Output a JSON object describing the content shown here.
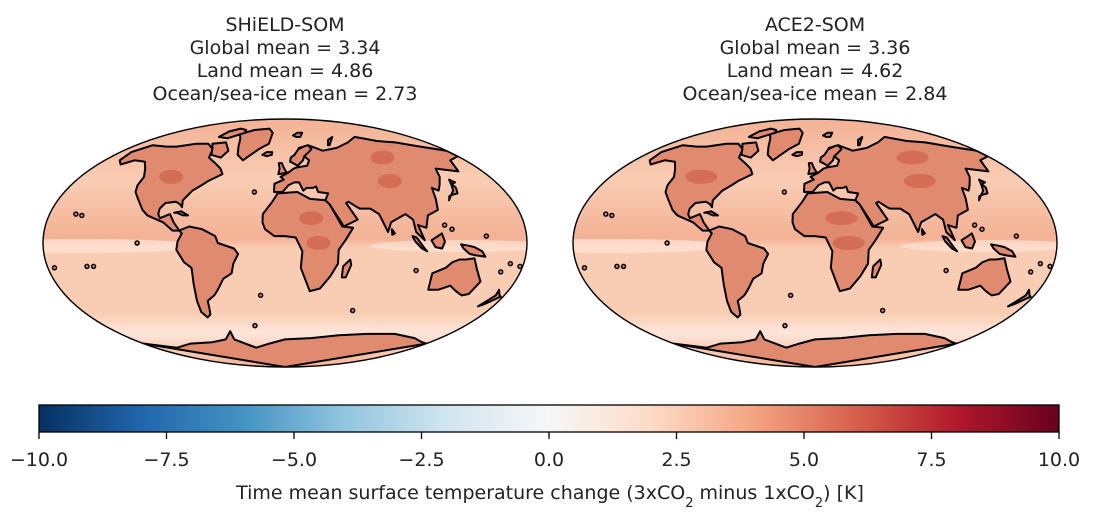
{
  "panels": [
    {
      "title": "SHiELD-SOM",
      "stats": [
        "Global mean = 3.34",
        "Land mean = 4.86",
        "Ocean/sea-ice mean = 2.73"
      ]
    },
    {
      "title": "ACE2-SOM",
      "stats": [
        "Global mean = 3.36",
        "Land mean = 4.62",
        "Ocean/sea-ice mean = 2.84"
      ]
    }
  ],
  "colorbar": {
    "min": -10.0,
    "max": 10.0,
    "ticks": [
      "−10.0",
      "−7.5",
      "−5.0",
      "−2.5",
      "0.0",
      "2.5",
      "5.0",
      "7.5",
      "10.0"
    ],
    "label_prefix": "Time mean surface temperature change (3xCO",
    "label_sub1": "2",
    "label_mid": " minus 1xCO",
    "label_sub2": "2",
    "label_suffix": ") [K]",
    "colormap": "RdBu_r",
    "stops": [
      "#053061",
      "#2166ac",
      "#4393c3",
      "#92c5de",
      "#d1e5f0",
      "#f7f7f7",
      "#fddbc7",
      "#f4a582",
      "#d6604d",
      "#b2182b",
      "#67001f"
    ]
  },
  "colors": {
    "ocean_base": "#f9cdb4",
    "ocean_warm": "#f3b194",
    "ocean_cool": "#fde6da",
    "land_base": "#e08a6f",
    "land_hot": "#c9553f",
    "coast": "#000000"
  }
}
